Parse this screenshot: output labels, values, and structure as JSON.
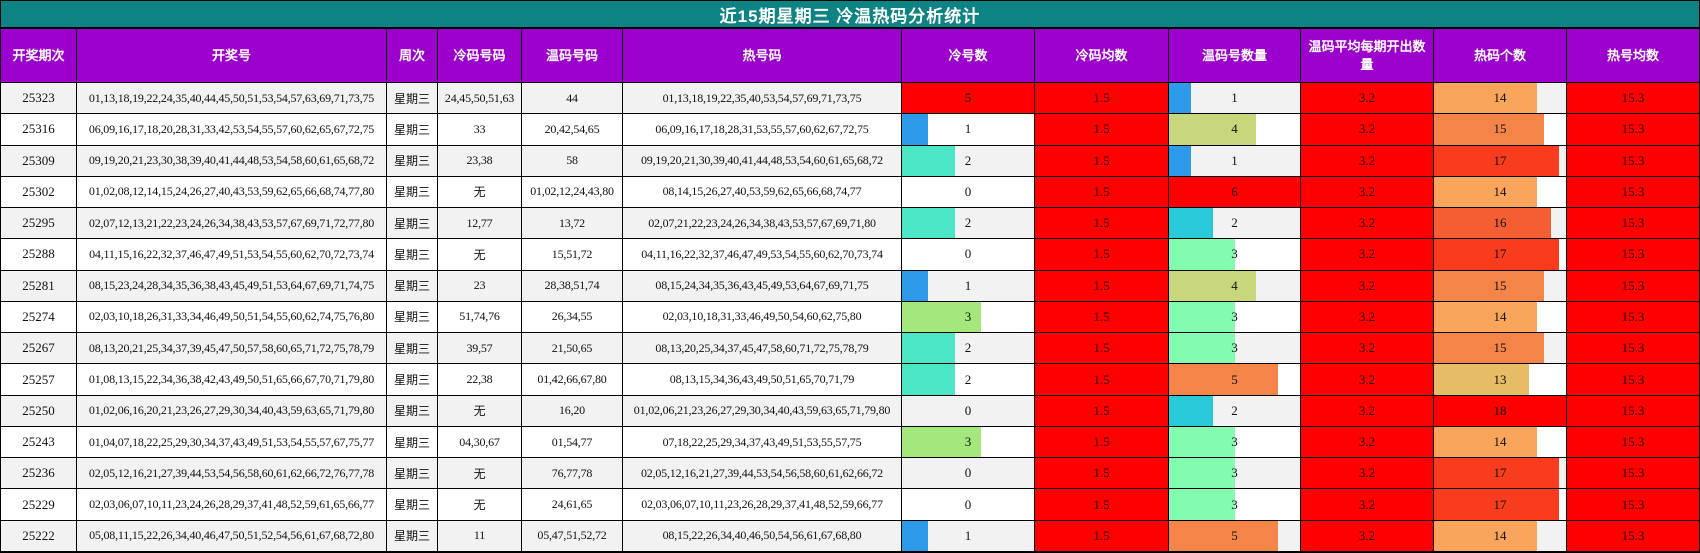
{
  "title": "近15期星期三 冷温热码分析统计",
  "columns": [
    {
      "label": "开奖期次"
    },
    {
      "label": "开奖号"
    },
    {
      "label": "周次"
    },
    {
      "label": "冷码号码"
    },
    {
      "label": "温码号码"
    },
    {
      "label": "热号码"
    },
    {
      "label": "冷号数"
    },
    {
      "label": "冷码均数"
    },
    {
      "label": "温码号数量"
    },
    {
      "label": "温码平均每期开出数量"
    },
    {
      "label": "热码个数"
    },
    {
      "label": "热号均数"
    }
  ],
  "colors": {
    "title_bg": "#0E8383",
    "header_bg": "#9C00CC",
    "red": "#FF0000",
    "row_odd": "#F2F2F2",
    "row_even": "#FFFFFF"
  },
  "bars": {
    "cold": {
      "max": 5,
      "colors": {
        "1": "#2E9BEA",
        "2": "#4BE6C5",
        "3": "#A4E87D",
        "4": "#C8D77B",
        "5": "#FF0000"
      }
    },
    "warm": {
      "max": 6,
      "colors": {
        "1": "#2E9BEA",
        "2": "#29C9D9",
        "3": "#84FCAF",
        "4": "#C8D77B",
        "5": "#F58449",
        "6": "#FF0000"
      }
    },
    "hot": {
      "max": 18,
      "colors": {
        "13": "#E7BC66",
        "14": "#F9A55B",
        "15": "#F58449",
        "16": "#F45E32",
        "17": "#F93C1D",
        "18": "#FF0000"
      }
    }
  },
  "rows": [
    {
      "period": "25323",
      "numbers": "01,13,18,19,22,24,35,40,44,45,50,51,53,54,57,63,69,71,73,75",
      "week": "星期三",
      "cold_nums": "24,45,50,51,63",
      "warm_nums": "44",
      "hot_nums": "01,13,18,19,22,35,40,53,54,57,69,71,73,75",
      "cold_count": 5,
      "cold_avg": "1.5",
      "warm_count": 1,
      "warm_avg": "3.2",
      "hot_count": 14,
      "hot_avg": "15.3"
    },
    {
      "period": "25316",
      "numbers": "06,09,16,17,18,20,28,31,33,42,53,54,55,57,60,62,65,67,72,75",
      "week": "星期三",
      "cold_nums": "33",
      "warm_nums": "20,42,54,65",
      "hot_nums": "06,09,16,17,18,28,31,53,55,57,60,62,67,72,75",
      "cold_count": 1,
      "cold_avg": "1.5",
      "warm_count": 4,
      "warm_avg": "3.2",
      "hot_count": 15,
      "hot_avg": "15.3"
    },
    {
      "period": "25309",
      "numbers": "09,19,20,21,23,30,38,39,40,41,44,48,53,54,58,60,61,65,68,72",
      "week": "星期三",
      "cold_nums": "23,38",
      "warm_nums": "58",
      "hot_nums": "09,19,20,21,30,39,40,41,44,48,53,54,60,61,65,68,72",
      "cold_count": 2,
      "cold_avg": "1.5",
      "warm_count": 1,
      "warm_avg": "3.2",
      "hot_count": 17,
      "hot_avg": "15.3"
    },
    {
      "period": "25302",
      "numbers": "01,02,08,12,14,15,24,26,27,40,43,53,59,62,65,66,68,74,77,80",
      "week": "星期三",
      "cold_nums": "无",
      "warm_nums": "01,02,12,24,43,80",
      "hot_nums": "08,14,15,26,27,40,53,59,62,65,66,68,74,77",
      "cold_count": 0,
      "cold_avg": "1.5",
      "warm_count": 6,
      "warm_avg": "3.2",
      "hot_count": 14,
      "hot_avg": "15.3"
    },
    {
      "period": "25295",
      "numbers": "02,07,12,13,21,22,23,24,26,34,38,43,53,57,67,69,71,72,77,80",
      "week": "星期三",
      "cold_nums": "12,77",
      "warm_nums": "13,72",
      "hot_nums": "02,07,21,22,23,24,26,34,38,43,53,57,67,69,71,80",
      "cold_count": 2,
      "cold_avg": "1.5",
      "warm_count": 2,
      "warm_avg": "3.2",
      "hot_count": 16,
      "hot_avg": "15.3"
    },
    {
      "period": "25288",
      "numbers": "04,11,15,16,22,32,37,46,47,49,51,53,54,55,60,62,70,72,73,74",
      "week": "星期三",
      "cold_nums": "无",
      "warm_nums": "15,51,72",
      "hot_nums": "04,11,16,22,32,37,46,47,49,53,54,55,60,62,70,73,74",
      "cold_count": 0,
      "cold_avg": "1.5",
      "warm_count": 3,
      "warm_avg": "3.2",
      "hot_count": 17,
      "hot_avg": "15.3"
    },
    {
      "period": "25281",
      "numbers": "08,15,23,24,28,34,35,36,38,43,45,49,51,53,64,67,69,71,74,75",
      "week": "星期三",
      "cold_nums": "23",
      "warm_nums": "28,38,51,74",
      "hot_nums": "08,15,24,34,35,36,43,45,49,53,64,67,69,71,75",
      "cold_count": 1,
      "cold_avg": "1.5",
      "warm_count": 4,
      "warm_avg": "3.2",
      "hot_count": 15,
      "hot_avg": "15.3"
    },
    {
      "period": "25274",
      "numbers": "02,03,10,18,26,31,33,34,46,49,50,51,54,55,60,62,74,75,76,80",
      "week": "星期三",
      "cold_nums": "51,74,76",
      "warm_nums": "26,34,55",
      "hot_nums": "02,03,10,18,31,33,46,49,50,54,60,62,75,80",
      "cold_count": 3,
      "cold_avg": "1.5",
      "warm_count": 3,
      "warm_avg": "3.2",
      "hot_count": 14,
      "hot_avg": "15.3"
    },
    {
      "period": "25267",
      "numbers": "08,13,20,21,25,34,37,39,45,47,50,57,58,60,65,71,72,75,78,79",
      "week": "星期三",
      "cold_nums": "39,57",
      "warm_nums": "21,50,65",
      "hot_nums": "08,13,20,25,34,37,45,47,58,60,71,72,75,78,79",
      "cold_count": 2,
      "cold_avg": "1.5",
      "warm_count": 3,
      "warm_avg": "3.2",
      "hot_count": 15,
      "hot_avg": "15.3"
    },
    {
      "period": "25257",
      "numbers": "01,08,13,15,22,34,36,38,42,43,49,50,51,65,66,67,70,71,79,80",
      "week": "星期三",
      "cold_nums": "22,38",
      "warm_nums": "01,42,66,67,80",
      "hot_nums": "08,13,15,34,36,43,49,50,51,65,70,71,79",
      "cold_count": 2,
      "cold_avg": "1.5",
      "warm_count": 5,
      "warm_avg": "3.2",
      "hot_count": 13,
      "hot_avg": "15.3"
    },
    {
      "period": "25250",
      "numbers": "01,02,06,16,20,21,23,26,27,29,30,34,40,43,59,63,65,71,79,80",
      "week": "星期三",
      "cold_nums": "无",
      "warm_nums": "16,20",
      "hot_nums": "01,02,06,21,23,26,27,29,30,34,40,43,59,63,65,71,79,80",
      "cold_count": 0,
      "cold_avg": "1.5",
      "warm_count": 2,
      "warm_avg": "3.2",
      "hot_count": 18,
      "hot_avg": "15.3"
    },
    {
      "period": "25243",
      "numbers": "01,04,07,18,22,25,29,30,34,37,43,49,51,53,54,55,57,67,75,77",
      "week": "星期三",
      "cold_nums": "04,30,67",
      "warm_nums": "01,54,77",
      "hot_nums": "07,18,22,25,29,34,37,43,49,51,53,55,57,75",
      "cold_count": 3,
      "cold_avg": "1.5",
      "warm_count": 3,
      "warm_avg": "3.2",
      "hot_count": 14,
      "hot_avg": "15.3"
    },
    {
      "period": "25236",
      "numbers": "02,05,12,16,21,27,39,44,53,54,56,58,60,61,62,66,72,76,77,78",
      "week": "星期三",
      "cold_nums": "无",
      "warm_nums": "76,77,78",
      "hot_nums": "02,05,12,16,21,27,39,44,53,54,56,58,60,61,62,66,72",
      "cold_count": 0,
      "cold_avg": "1.5",
      "warm_count": 3,
      "warm_avg": "3.2",
      "hot_count": 17,
      "hot_avg": "15.3"
    },
    {
      "period": "25229",
      "numbers": "02,03,06,07,10,11,23,24,26,28,29,37,41,48,52,59,61,65,66,77",
      "week": "星期三",
      "cold_nums": "无",
      "warm_nums": "24,61,65",
      "hot_nums": "02,03,06,07,10,11,23,26,28,29,37,41,48,52,59,66,77",
      "cold_count": 0,
      "cold_avg": "1.5",
      "warm_count": 3,
      "warm_avg": "3.2",
      "hot_count": 17,
      "hot_avg": "15.3"
    },
    {
      "period": "25222",
      "numbers": "05,08,11,15,22,26,34,40,46,47,50,51,52,54,56,61,67,68,72,80",
      "week": "星期三",
      "cold_nums": "11",
      "warm_nums": "05,47,51,52,72",
      "hot_nums": "08,15,22,26,34,40,46,50,54,56,61,67,68,80",
      "cold_count": 1,
      "cold_avg": "1.5",
      "warm_count": 5,
      "warm_avg": "3.2",
      "hot_count": 14,
      "hot_avg": "15.3"
    }
  ],
  "chart_data": {
    "type": "table",
    "title": "近15期星期三 冷温热码分析统计",
    "columns": [
      "开奖期次",
      "开奖号",
      "周次",
      "冷码号码",
      "温码号码",
      "热号码",
      "冷号数",
      "冷码均数",
      "温码号数量",
      "温码平均每期开出数量",
      "热码个数",
      "热号均数"
    ],
    "bar_columns": {
      "冷号数": {
        "max": 5
      },
      "温码号数量": {
        "max": 6
      },
      "热码个数": {
        "max": 18
      }
    },
    "rows": [
      [
        "25323",
        "01,13,18,19,22,24,35,40,44,45,50,51,53,54,57,63,69,71,73,75",
        "星期三",
        "24,45,50,51,63",
        "44",
        "01,13,18,19,22,35,40,53,54,57,69,71,73,75",
        5,
        1.5,
        1,
        3.2,
        14,
        15.3
      ],
      [
        "25316",
        "06,09,16,17,18,20,28,31,33,42,53,54,55,57,60,62,65,67,72,75",
        "星期三",
        "33",
        "20,42,54,65",
        "06,09,16,17,18,28,31,53,55,57,60,62,67,72,75",
        1,
        1.5,
        4,
        3.2,
        15,
        15.3
      ],
      [
        "25309",
        "09,19,20,21,23,30,38,39,40,41,44,48,53,54,58,60,61,65,68,72",
        "星期三",
        "23,38",
        "58",
        "09,19,20,21,30,39,40,41,44,48,53,54,60,61,65,68,72",
        2,
        1.5,
        1,
        3.2,
        17,
        15.3
      ],
      [
        "25302",
        "01,02,08,12,14,15,24,26,27,40,43,53,59,62,65,66,68,74,77,80",
        "星期三",
        "无",
        "01,02,12,24,43,80",
        "08,14,15,26,27,40,53,59,62,65,66,68,74,77",
        0,
        1.5,
        6,
        3.2,
        14,
        15.3
      ],
      [
        "25295",
        "02,07,12,13,21,22,23,24,26,34,38,43,53,57,67,69,71,72,77,80",
        "星期三",
        "12,77",
        "13,72",
        "02,07,21,22,23,24,26,34,38,43,53,57,67,69,71,80",
        2,
        1.5,
        2,
        3.2,
        16,
        15.3
      ],
      [
        "25288",
        "04,11,15,16,22,32,37,46,47,49,51,53,54,55,60,62,70,72,73,74",
        "星期三",
        "无",
        "15,51,72",
        "04,11,16,22,32,37,46,47,49,53,54,55,60,62,70,73,74",
        0,
        1.5,
        3,
        3.2,
        17,
        15.3
      ],
      [
        "25281",
        "08,15,23,24,28,34,35,36,38,43,45,49,51,53,64,67,69,71,74,75",
        "星期三",
        "23",
        "28,38,51,74",
        "08,15,24,34,35,36,43,45,49,53,64,67,69,71,75",
        1,
        1.5,
        4,
        3.2,
        15,
        15.3
      ],
      [
        "25274",
        "02,03,10,18,26,31,33,34,46,49,50,51,54,55,60,62,74,75,76,80",
        "星期三",
        "51,74,76",
        "26,34,55",
        "02,03,10,18,31,33,46,49,50,54,60,62,75,80",
        3,
        1.5,
        3,
        3.2,
        14,
        15.3
      ],
      [
        "25267",
        "08,13,20,21,25,34,37,39,45,47,50,57,58,60,65,71,72,75,78,79",
        "星期三",
        "39,57",
        "21,50,65",
        "08,13,20,25,34,37,45,47,58,60,71,72,75,78,79",
        2,
        1.5,
        3,
        3.2,
        15,
        15.3
      ],
      [
        "25257",
        "01,08,13,15,22,34,36,38,42,43,49,50,51,65,66,67,70,71,79,80",
        "星期三",
        "22,38",
        "01,42,66,67,80",
        "08,13,15,34,36,43,49,50,51,65,70,71,79",
        2,
        1.5,
        5,
        3.2,
        13,
        15.3
      ],
      [
        "25250",
        "01,02,06,16,20,21,23,26,27,29,30,34,40,43,59,63,65,71,79,80",
        "星期三",
        "无",
        "16,20",
        "01,02,06,21,23,26,27,29,30,34,40,43,59,63,65,71,79,80",
        0,
        1.5,
        2,
        3.2,
        18,
        15.3
      ],
      [
        "25243",
        "01,04,07,18,22,25,29,30,34,37,43,49,51,53,54,55,57,67,75,77",
        "星期三",
        "04,30,67",
        "01,54,77",
        "07,18,22,25,29,34,37,43,49,51,53,55,57,75",
        3,
        1.5,
        3,
        3.2,
        14,
        15.3
      ],
      [
        "25236",
        "02,05,12,16,21,27,39,44,53,54,56,58,60,61,62,66,72,76,77,78",
        "星期三",
        "无",
        "76,77,78",
        "02,05,12,16,21,27,39,44,53,54,56,58,60,61,62,66,72",
        0,
        1.5,
        3,
        3.2,
        17,
        15.3
      ],
      [
        "25229",
        "02,03,06,07,10,11,23,24,26,28,29,37,41,48,52,59,61,65,66,77",
        "星期三",
        "无",
        "24,61,65",
        "02,03,06,07,10,11,23,26,28,29,37,41,48,52,59,66,77",
        0,
        1.5,
        3,
        3.2,
        17,
        15.3
      ],
      [
        "25222",
        "05,08,11,15,22,26,34,40,46,47,50,51,52,54,56,61,67,68,72,80",
        "星期三",
        "11",
        "05,47,51,52,72",
        "08,15,22,26,34,40,46,50,54,56,61,67,68,80",
        1,
        1.5,
        5,
        3.2,
        14,
        15.3
      ]
    ]
  }
}
